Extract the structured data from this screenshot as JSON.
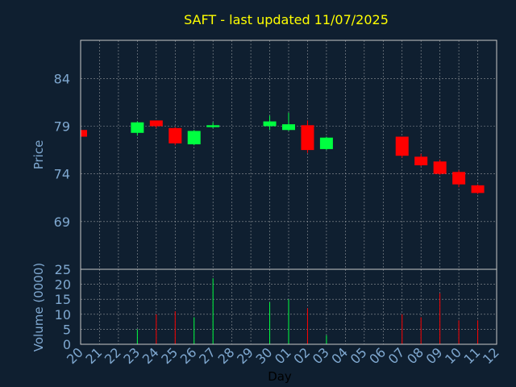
{
  "chart_data": {
    "type": "candlestick",
    "title": "SAFT - last updated 11/07/2025",
    "xlabel": "Day",
    "price_ylabel": "Price",
    "volume_ylabel": "Volume (0000)",
    "x_tick_labels": [
      "20",
      "21",
      "22",
      "23",
      "24",
      "25",
      "26",
      "27",
      "28",
      "29",
      "30",
      "01",
      "02",
      "03",
      "04",
      "05",
      "06",
      "07",
      "08",
      "09",
      "10",
      "11",
      "12"
    ],
    "price_ylim": [
      64,
      88
    ],
    "price_yticks": [
      69,
      74,
      79,
      84
    ],
    "volume_ylim": [
      0,
      25
    ],
    "volume_yticks": [
      0,
      5,
      10,
      15,
      20,
      25
    ],
    "grid": true,
    "colors": {
      "background": "#0f1f30",
      "up": "#00ff40",
      "down": "#ff0000",
      "title": "#ffff00",
      "axis_text": "#7fa8d0",
      "grid": "#c8c8c8",
      "frame": "#c8c8c8"
    },
    "candles": [
      {
        "x": "20",
        "open": 78.6,
        "high": 78.6,
        "low": 77.9,
        "close": 77.9,
        "volume": 0
      },
      {
        "x": "23",
        "open": 78.3,
        "high": 79.5,
        "low": 78.0,
        "close": 79.4,
        "volume": 5
      },
      {
        "x": "24",
        "open": 79.6,
        "high": 79.6,
        "low": 78.8,
        "close": 79.0,
        "volume": 10
      },
      {
        "x": "25",
        "open": 78.8,
        "high": 78.9,
        "low": 77.0,
        "close": 77.2,
        "volume": 11
      },
      {
        "x": "26",
        "open": 77.1,
        "high": 78.6,
        "low": 77.0,
        "close": 78.5,
        "volume": 9
      },
      {
        "x": "27",
        "open": 78.9,
        "high": 79.4,
        "low": 78.8,
        "close": 79.1,
        "volume": 22
      },
      {
        "x": "30",
        "open": 79.0,
        "high": 80.1,
        "low": 78.6,
        "close": 79.5,
        "volume": 14
      },
      {
        "x": "01",
        "open": 78.6,
        "high": 80.4,
        "low": 78.5,
        "close": 79.2,
        "volume": 15
      },
      {
        "x": "02",
        "open": 79.1,
        "high": 79.6,
        "low": 76.2,
        "close": 76.5,
        "volume": 12
      },
      {
        "x": "03",
        "open": 76.6,
        "high": 77.9,
        "low": 76.5,
        "close": 77.8,
        "volume": 3
      },
      {
        "x": "07",
        "open": 77.9,
        "high": 77.9,
        "low": 75.7,
        "close": 75.9,
        "volume": 10
      },
      {
        "x": "08",
        "open": 75.8,
        "high": 76.1,
        "low": 74.8,
        "close": 74.9,
        "volume": 9
      },
      {
        "x": "09",
        "open": 75.3,
        "high": 75.5,
        "low": 73.9,
        "close": 74.0,
        "volume": 17
      },
      {
        "x": "10",
        "open": 74.2,
        "high": 74.4,
        "low": 72.6,
        "close": 72.9,
        "volume": 8
      },
      {
        "x": "11",
        "open": 72.8,
        "high": 72.9,
        "low": 71.9,
        "close": 72.0,
        "volume": 8
      }
    ]
  }
}
